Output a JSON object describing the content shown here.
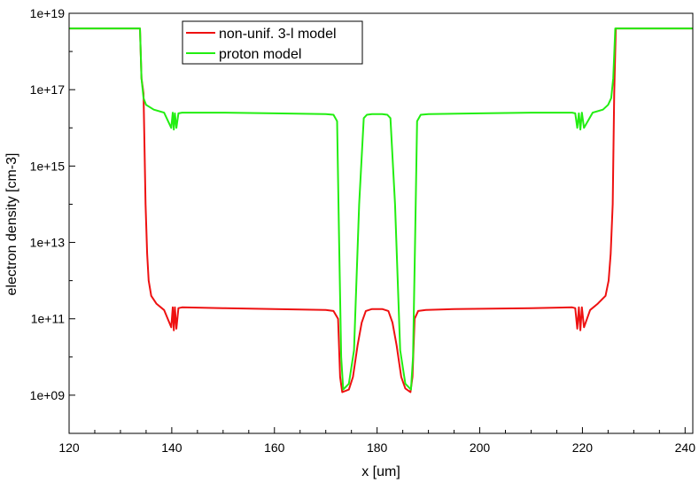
{
  "chart_data": {
    "type": "line",
    "title": "",
    "xlabel": "x [um]",
    "ylabel": "electron density [cm-3]",
    "xlim": [
      120,
      241.5
    ],
    "ylim": [
      100000000.0,
      1e+19
    ],
    "yscale": "log",
    "grid": false,
    "legend_position": "top-center",
    "x_ticks": [
      120,
      140,
      160,
      180,
      200,
      220,
      240
    ],
    "x_tick_labels": [
      "120",
      "140",
      "160",
      "180",
      "200",
      "220",
      "240"
    ],
    "y_ticks": [
      1000000000.0,
      100000000000.0,
      10000000000000.0,
      1000000000000000.0,
      1e+17,
      1e+19
    ],
    "y_tick_labels": [
      "1e+09",
      "1e+11",
      "1e+13",
      "1e+15",
      "1e+17",
      "1e+19"
    ],
    "series": [
      {
        "name": "non-unif. 3-l model",
        "color": "#ee1111",
        "x": [
          120,
          133.8,
          134.1,
          134.5,
          134.9,
          135.2,
          135.5,
          136.0,
          137.0,
          138.5,
          139.9,
          140.2,
          140.4,
          140.6,
          140.9,
          141.3,
          142.0,
          150.0,
          160.0,
          170.0,
          171.5,
          172.4,
          172.8,
          173.2,
          174.5,
          175.3,
          176.2,
          177.0,
          177.8,
          179.0,
          181.0,
          182.2,
          183.0,
          183.8,
          184.7,
          185.5,
          186.5,
          186.9,
          187.3,
          188.0,
          189.5,
          195.0,
          210.0,
          218.0,
          218.6,
          219.0,
          219.3,
          219.6,
          219.9,
          220.3,
          221.5,
          223.0,
          224.5,
          225.1,
          225.5,
          225.9,
          226.2,
          226.5,
          241.5
        ],
        "values": [
          4e+18,
          4e+18,
          2e+17,
          8e+16,
          100000000000000.0,
          5000000000000.0,
          1000000000000.0,
          400000000000.0,
          250000000000.0,
          170000000000.0,
          60000000000.0,
          200000000000.0,
          50000000000.0,
          200000000000.0,
          55000000000.0,
          190000000000.0,
          200000000000.0,
          190000000000.0,
          180000000000.0,
          170000000000.0,
          160000000000.0,
          100000000000.0,
          3000000000.0,
          1200000000.0,
          1400000000.0,
          3000000000.0,
          20000000000.0,
          80000000000.0,
          160000000000.0,
          180000000000.0,
          180000000000.0,
          160000000000.0,
          80000000000.0,
          20000000000.0,
          3000000000.0,
          1500000000.0,
          1200000000.0,
          3000000000.0,
          100000000000.0,
          160000000000.0,
          170000000000.0,
          180000000000.0,
          190000000000.0,
          200000000000.0,
          190000000000.0,
          55000000000.0,
          200000000000.0,
          50000000000.0,
          200000000000.0,
          60000000000.0,
          170000000000.0,
          250000000000.0,
          400000000000.0,
          1000000000000.0,
          5000000000000.0,
          100000000000000.0,
          8e+16,
          4e+18,
          4e+18
        ]
      },
      {
        "name": "proton model",
        "color": "#22ee11",
        "x": [
          120,
          133.8,
          134.1,
          134.5,
          135.0,
          136.5,
          138.5,
          139.9,
          140.2,
          140.4,
          140.6,
          140.9,
          141.3,
          142.0,
          150.0,
          160.0,
          170.0,
          171.5,
          172.2,
          172.6,
          173.0,
          173.4,
          174.5,
          175.5,
          176.5,
          177.4,
          178.0,
          179.0,
          181.0,
          182.0,
          182.6,
          183.5,
          184.5,
          185.5,
          186.6,
          187.0,
          187.4,
          187.8,
          188.5,
          190.0,
          200.0,
          210.0,
          218.0,
          218.6,
          219.0,
          219.3,
          219.6,
          219.9,
          220.3,
          222.0,
          224.0,
          225.0,
          225.6,
          226.0,
          226.4,
          241.5
        ],
        "values": [
          4e+18,
          4e+18,
          2e+17,
          6e+16,
          4e+16,
          3e+16,
          2.5e+16,
          1e+16,
          2.5e+16,
          9000000000000000.0,
          2.4e+16,
          1e+16,
          2.4e+16,
          2.5e+16,
          2.5e+16,
          2.4e+16,
          2.3e+16,
          2.2e+16,
          1.5e+16,
          10000000000000.0,
          10000000000.0,
          1400000000.0,
          2000000000.0,
          15000000000.0,
          100000000000000.0,
          1.8e+16,
          2.2e+16,
          2.3e+16,
          2.3e+16,
          2.2e+16,
          1.8e+16,
          100000000000000.0,
          15000000000.0,
          2000000000.0,
          1400000000.0,
          10000000000.0,
          10000000000000.0,
          1.5e+16,
          2.2e+16,
          2.3e+16,
          2.4e+16,
          2.5e+16,
          2.5e+16,
          2.4e+16,
          1e+16,
          2.4e+16,
          9000000000000000.0,
          2.5e+16,
          1e+16,
          2.5e+16,
          3e+16,
          4e+16,
          6e+16,
          2e+17,
          4e+18,
          4e+18
        ]
      }
    ]
  }
}
